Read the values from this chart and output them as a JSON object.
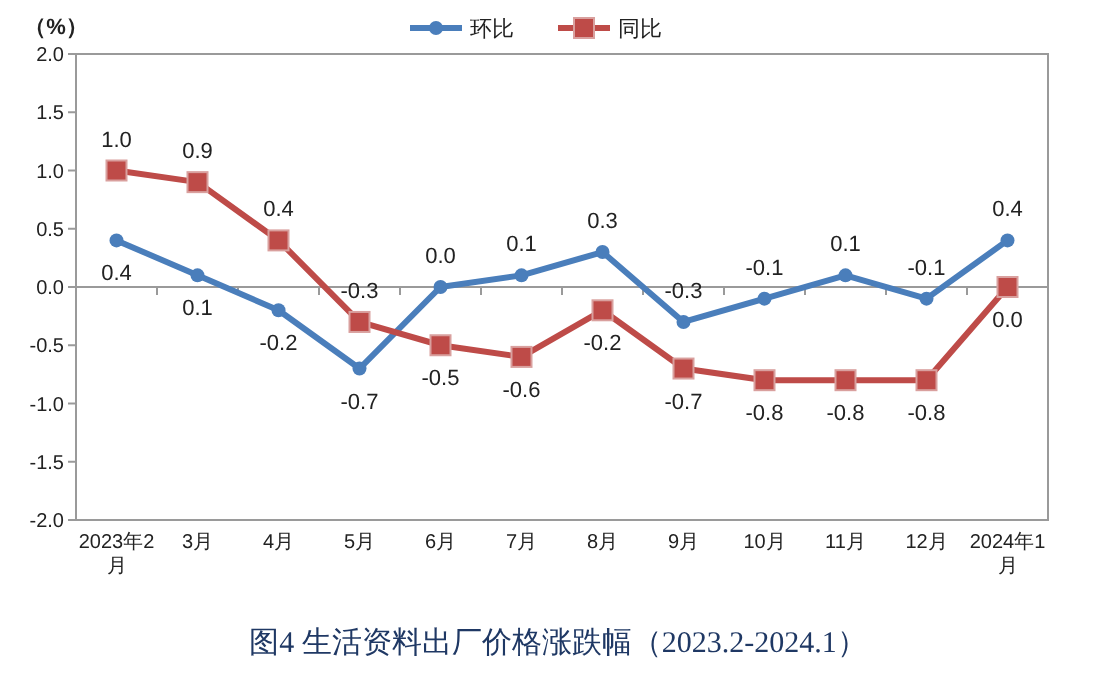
{
  "chart_data": {
    "type": "line",
    "title": "图4 生活资料出厂价格涨跌幅（2023.2-2024.1）",
    "ylabel": "（%）",
    "categories": [
      "2023年2月",
      "3月",
      "4月",
      "5月",
      "6月",
      "7月",
      "8月",
      "9月",
      "10月",
      "11月",
      "12月",
      "2024年1月"
    ],
    "series": [
      {
        "name": "环比",
        "color": "#4a7ebb",
        "marker": "circle",
        "values": [
          0.4,
          0.1,
          -0.2,
          -0.7,
          0.0,
          0.1,
          0.3,
          -0.3,
          -0.1,
          0.1,
          -0.1,
          0.4
        ],
        "value_labels": [
          "0.4",
          "0.1",
          "-0.2",
          "-0.7",
          "0.0",
          "0.1",
          "0.3",
          "-0.3",
          "-0.1",
          "0.1",
          "-0.1",
          "0.4"
        ]
      },
      {
        "name": "同比",
        "color": "#be4b48",
        "marker": "square",
        "values": [
          1.0,
          0.9,
          0.4,
          -0.3,
          -0.5,
          -0.6,
          -0.2,
          -0.7,
          -0.8,
          -0.8,
          -0.8,
          0.0
        ],
        "value_labels": [
          "1.0",
          "0.9",
          "0.4",
          "-0.3",
          "-0.5",
          "-0.6",
          "-0.2",
          "-0.7",
          "-0.8",
          "-0.8",
          "-0.8",
          "0.0"
        ]
      }
    ],
    "ylim": [
      -2.0,
      2.0
    ],
    "yticks": [
      {
        "value": -2,
        "label": "-2.0"
      },
      {
        "value": -1.5,
        "label": "-1.5"
      },
      {
        "value": -1,
        "label": "-1.0"
      },
      {
        "value": -0.5,
        "label": "-0.5"
      },
      {
        "value": 0,
        "label": "0.0"
      },
      {
        "value": 0.5,
        "label": "0.5"
      },
      {
        "value": 1,
        "label": "1.0"
      },
      {
        "value": 1.5,
        "label": "1.5"
      },
      {
        "value": 2,
        "label": "2.0"
      }
    ],
    "legend": "top"
  }
}
